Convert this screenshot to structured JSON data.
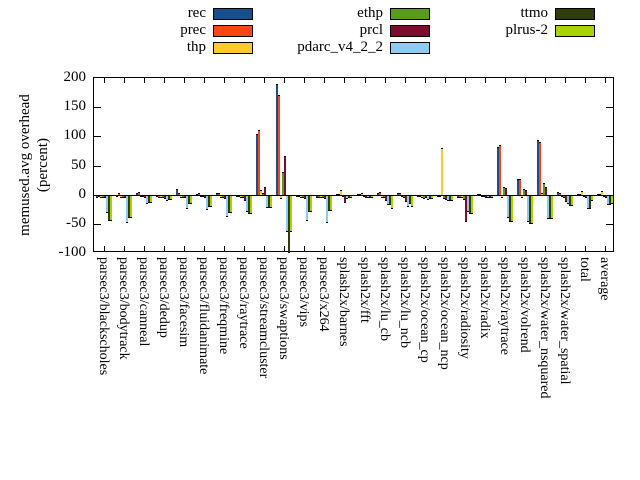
{
  "figure": {
    "background": "#ffffff",
    "border_color": "#000000"
  },
  "y_axis": {
    "label_lines": [
      "memused.avg overhead",
      "(percent)"
    ]
  },
  "chart_data": {
    "type": "bar",
    "title": "",
    "xlabel": "",
    "ylabel": "memused.avg overhead (percent)",
    "ylim": [
      -100,
      200
    ],
    "yticks": [
      200,
      150,
      100,
      50,
      0,
      -50,
      -100
    ],
    "grid": false,
    "legend_position": "top-center-3-columns",
    "legend_columns": [
      [
        "rec",
        "prec",
        "thp"
      ],
      [
        "ethp",
        "prcl",
        "pdarc_v4_2_2"
      ],
      [
        "ttmo",
        "plrus-2"
      ]
    ],
    "categories": [
      "parsec3/blackscholes",
      "parsec3/bodytrack",
      "parsec3/canneal",
      "parsec3/dedup",
      "parsec3/facesim",
      "parsec3/fluidanimate",
      "parsec3/freqmine",
      "parsec3/raytrace",
      "parsec3/streamcluster",
      "parsec3/swaptions",
      "parsec3/vips",
      "parsec3/x264",
      "splash2x/barnes",
      "splash2x/fft",
      "splash2x/lu_cb",
      "splash2x/lu_ncb",
      "splash2x/ocean_cp",
      "splash2x/ocean_ncp",
      "splash2x/radiosity",
      "splash2x/radix",
      "splash2x/raytrace",
      "splash2x/volrend",
      "splash2x/water_nsquared",
      "splash2x/water_spatial",
      "total",
      "average"
    ],
    "series": [
      {
        "name": "rec",
        "color": "#174e8c",
        "values": [
          -3,
          -2,
          3,
          -2,
          10,
          2,
          3,
          -2,
          105,
          191,
          -2,
          -3,
          2,
          2,
          3,
          3,
          -2,
          -2,
          -3,
          2,
          83,
          28,
          95,
          5,
          2,
          2
        ]
      },
      {
        "name": "prec",
        "color": "#fc4612",
        "values": [
          -2,
          4,
          5,
          -3,
          3,
          4,
          4,
          -2,
          112,
          171,
          -2,
          -3,
          2,
          2,
          5,
          4,
          -2,
          -2,
          -3,
          2,
          85,
          27,
          90,
          4,
          2,
          2
        ]
      },
      {
        "name": "thp",
        "color": "#ffca28",
        "values": [
          -3,
          -3,
          -2,
          -4,
          -3,
          -2,
          -3,
          -3,
          8,
          -5,
          -4,
          -4,
          8,
          3,
          -3,
          -2,
          -3,
          81,
          -4,
          -2,
          -3,
          -3,
          3,
          -2,
          7,
          7
        ]
      },
      {
        "name": "ethp",
        "color": "#599c1d",
        "values": [
          -3,
          -3,
          -2,
          -4,
          -3,
          -2,
          -3,
          -3,
          4,
          40,
          -4,
          -4,
          -2,
          -2,
          -3,
          -3,
          -5,
          -5,
          -6,
          -2,
          14,
          10,
          21,
          -3,
          -2,
          -2
        ]
      },
      {
        "name": "prcl",
        "color": "#7b0c2e",
        "values": [
          -4,
          -4,
          -3,
          -5,
          -4,
          -3,
          -5,
          -8,
          14,
          66,
          -5,
          -5,
          -12,
          -3,
          -8,
          -10,
          -4,
          -6,
          -44,
          -3,
          12,
          8,
          13,
          -10,
          -3,
          -4
        ]
      },
      {
        "name": "pdarc_v4_2_2",
        "color": "#8ecaf2",
        "values": [
          -29,
          -46,
          -13,
          -8,
          -22,
          -24,
          -36,
          -28,
          -21,
          -62,
          -43,
          -46,
          -5,
          -4,
          -16,
          -18,
          -6,
          -9,
          -27,
          -4,
          -37,
          -44,
          -40,
          -13,
          -22,
          -15
        ]
      },
      {
        "name": "ttmo",
        "color": "#2e3d0a",
        "values": [
          -43,
          -37,
          -12,
          -7,
          -14,
          -18,
          -29,
          -31,
          -21,
          -97,
          -27,
          -25,
          -4,
          -3,
          -15,
          -14,
          -5,
          -8,
          -30,
          -3,
          -44,
          -48,
          -40,
          -17,
          -22,
          -15
        ]
      },
      {
        "name": "plrus-2",
        "color": "#a8d400",
        "values": [
          -43,
          -37,
          -12,
          -7,
          -14,
          -18,
          -29,
          -31,
          -21,
          -62,
          -27,
          -25,
          -4,
          -3,
          -23,
          -18,
          -5,
          -8,
          -30,
          -3,
          -44,
          -48,
          -40,
          -17,
          -8,
          -14
        ]
      }
    ]
  }
}
